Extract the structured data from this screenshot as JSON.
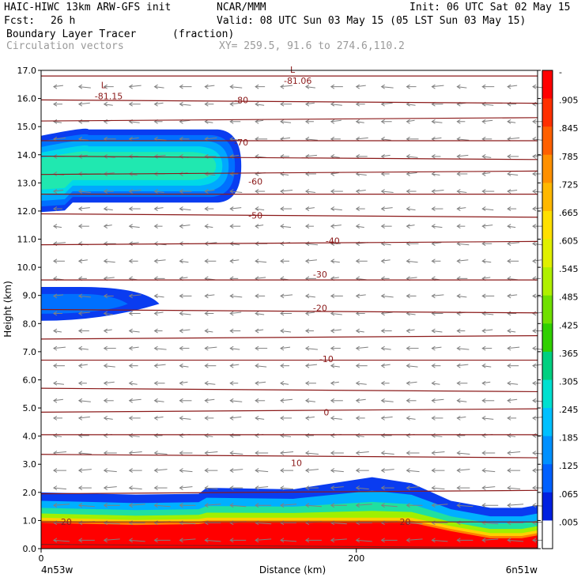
{
  "header": {
    "model": "HAIC-HIWC 13km ARW-GFS init",
    "org": "NCAR/MMM",
    "init": "Init: 06 UTC Sat 02 May 15",
    "fcst_label": "Fcst:",
    "fcst_value": "26 h",
    "valid": "Valid: 08 UTC Sun 03 May 15 (05 LST Sun 03 May 15)",
    "field1_name": "Boundary Layer Tracer",
    "field1_unit": "(fraction)",
    "field2_name": "Circulation vectors",
    "xy": "XY= 259.5, 91.6 to 274.6,110.2"
  },
  "chart_data": {
    "type": "heatmap",
    "xlabel": "Distance (km)",
    "ylabel": "Height (km)",
    "xlim": [
      0,
      315
    ],
    "ylim": [
      0,
      17
    ],
    "x_ticks": [
      "0",
      "200"
    ],
    "y_ticks": [
      "0.0",
      "1.0",
      "2.0",
      "3.0",
      "4.0",
      "5.0",
      "6.0",
      "7.0",
      "8.0",
      "9.0",
      "10.0",
      "11.0",
      "12.0",
      "13.0",
      "14.0",
      "15.0",
      "16.0",
      "17.0"
    ],
    "x_endpoints": {
      "left": "4n53w",
      "right": "6n51w"
    },
    "colorbar": {
      "labels": [
        "-",
        ".905",
        ".845",
        ".785",
        ".725",
        ".665",
        ".605",
        ".545",
        ".485",
        ".425",
        ".365",
        ".305",
        ".245",
        ".185",
        ".125",
        ".065",
        ".005"
      ],
      "colors": [
        "#ff0000",
        "#ff3000",
        "#ff6000",
        "#ff9000",
        "#ffb800",
        "#ffe000",
        "#e0f000",
        "#b0f000",
        "#70e000",
        "#30d000",
        "#00d080",
        "#00e0d0",
        "#00c0ff",
        "#0090ff",
        "#0060ff",
        "#0020e0",
        "#ffffff"
      ]
    },
    "tracer_regions": [
      {
        "name": "upper plume",
        "x_range": [
          0,
          127
        ],
        "y_range": [
          12.3,
          14.9
        ]
      },
      {
        "name": "mid plume",
        "x_range": [
          0,
          75
        ],
        "y_range": [
          8.1,
          9.3
        ]
      },
      {
        "name": "boundary layer",
        "x_range": [
          0,
          315
        ],
        "y_range": [
          0,
          2.0
        ]
      }
    ],
    "isotherm_labels": [
      {
        "text": "-80",
        "x": 127,
        "y": 15.95
      },
      {
        "text": "-70",
        "x": 127,
        "y": 14.45
      },
      {
        "text": "-60",
        "x": 136,
        "y": 13.05
      },
      {
        "text": "-50",
        "x": 136,
        "y": 11.85
      },
      {
        "text": "-40",
        "x": 185,
        "y": 10.95
      },
      {
        "text": "-30",
        "x": 177,
        "y": 9.75
      },
      {
        "text": "-20",
        "x": 177,
        "y": 8.55
      },
      {
        "text": "-10",
        "x": 181,
        "y": 6.75
      },
      {
        "text": "0",
        "x": 181,
        "y": 4.85
      },
      {
        "text": "10",
        "x": 162,
        "y": 3.05
      },
      {
        "text": "20",
        "x": 16,
        "y": 0.95
      },
      {
        "text": "20",
        "x": 231,
        "y": 0.95
      }
    ],
    "isotherm_heights": [
      0.15,
      0.95,
      1.95,
      3.35,
      4.05,
      4.85,
      5.7,
      6.7,
      7.45,
      8.5,
      9.55,
      10.8,
      11.9,
      12.6,
      13.3,
      13.95,
      14.5,
      15.2,
      15.95,
      16.8
    ],
    "low_markers": [
      {
        "letter": "L",
        "value": "-81.15",
        "x": 40,
        "y": 16.2
      },
      {
        "letter": "L",
        "value": "-81.06",
        "x": 160,
        "y": 16.75
      }
    ]
  }
}
